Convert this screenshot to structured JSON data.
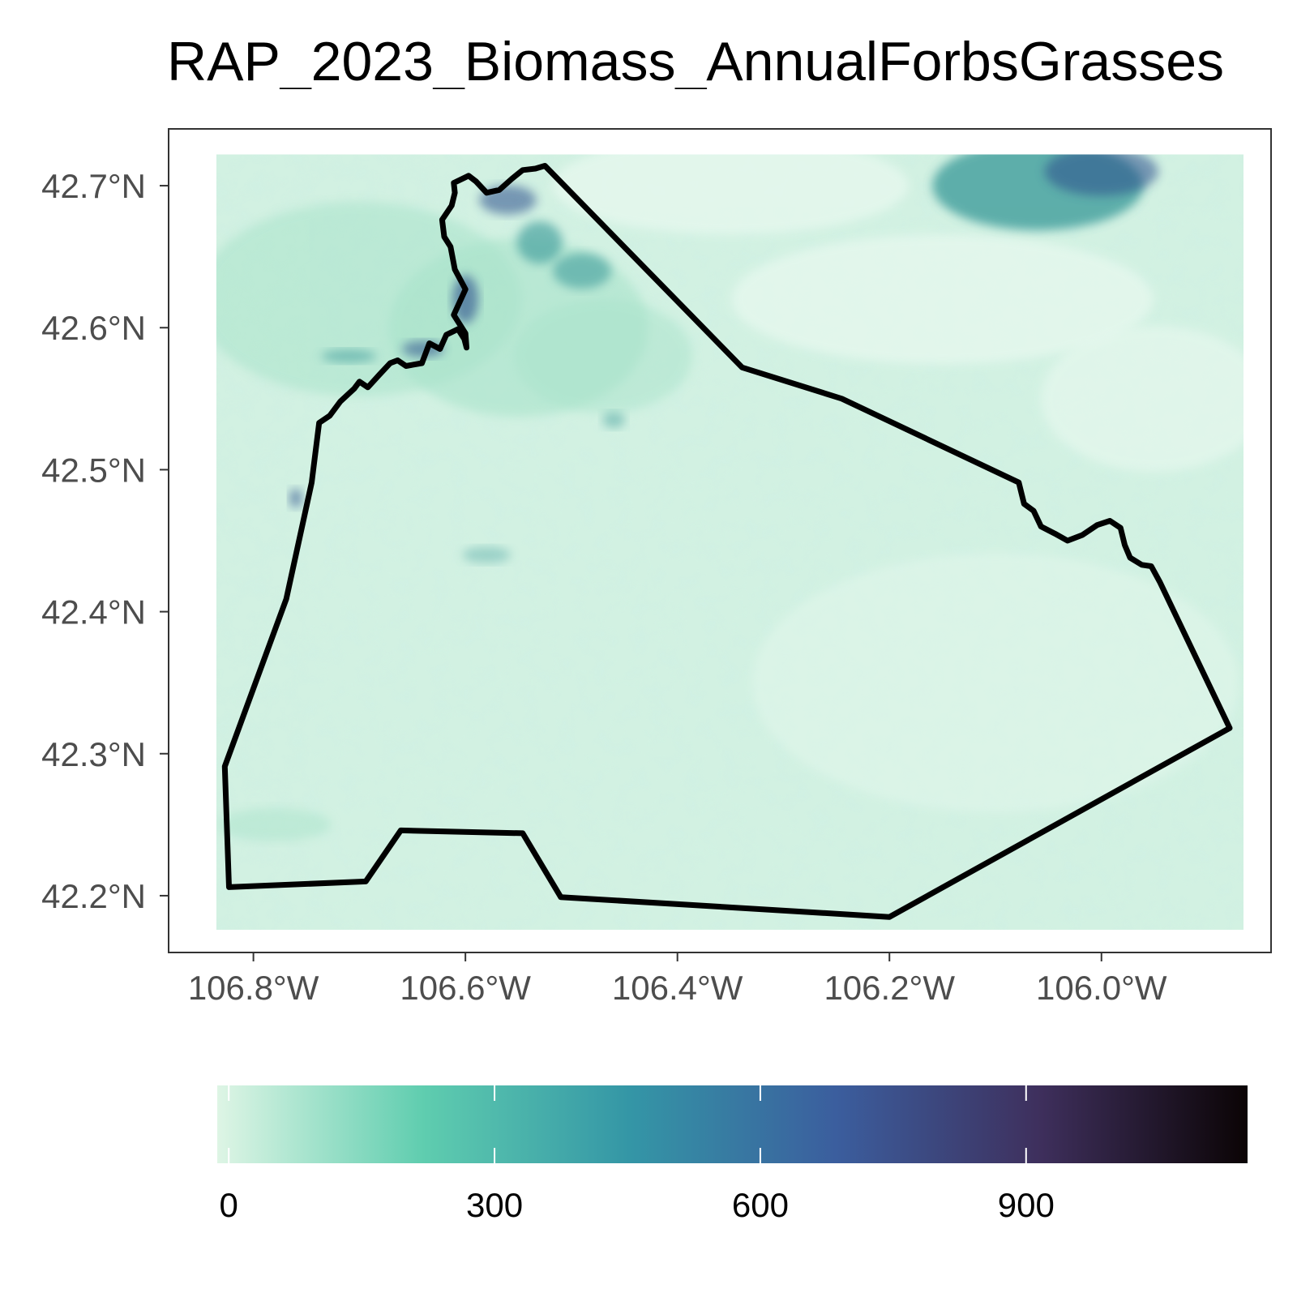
{
  "chart_data": {
    "type": "map",
    "title": "RAP_2023_Biomass_AnnualForbsGrasses",
    "x_axis": {
      "ticks": [
        -106.8,
        -106.6,
        -106.4,
        -106.2,
        -106.0
      ],
      "tick_labels": [
        "106.8°W",
        "106.6°W",
        "106.4°W",
        "106.2°W",
        "106.0°W"
      ],
      "range": [
        -106.88,
        -105.84
      ]
    },
    "y_axis": {
      "ticks": [
        42.2,
        42.3,
        42.4,
        42.5,
        42.6,
        42.7
      ],
      "tick_labels": [
        "42.2°N",
        "42.3°N",
        "42.4°N",
        "42.5°N",
        "42.6°N",
        "42.7°N"
      ],
      "range": [
        42.16,
        42.74
      ]
    },
    "raster_extent": {
      "lon": [
        -106.835,
        -105.866
      ],
      "lat": [
        42.176,
        42.722
      ]
    },
    "boundary": [
      [
        -106.611,
        42.702
      ],
      [
        -106.597,
        42.707
      ],
      [
        -106.59,
        42.703
      ],
      [
        -106.58,
        42.695
      ],
      [
        -106.568,
        42.697
      ],
      [
        -106.556,
        42.705
      ],
      [
        -106.546,
        42.711
      ],
      [
        -106.534,
        42.712
      ],
      [
        -106.525,
        42.714
      ],
      [
        -106.339,
        42.572
      ],
      [
        -106.245,
        42.55
      ],
      [
        -106.078,
        42.491
      ],
      [
        -106.073,
        42.476
      ],
      [
        -106.064,
        42.471
      ],
      [
        -106.057,
        42.46
      ],
      [
        -106.044,
        42.455
      ],
      [
        -106.032,
        42.45
      ],
      [
        -106.018,
        42.454
      ],
      [
        -106.004,
        42.461
      ],
      [
        -105.992,
        42.464
      ],
      [
        -105.982,
        42.459
      ],
      [
        -105.978,
        42.447
      ],
      [
        -105.973,
        42.438
      ],
      [
        -105.962,
        42.433
      ],
      [
        -105.953,
        42.432
      ],
      [
        -105.945,
        42.421
      ],
      [
        -105.879,
        42.318
      ],
      [
        -106.2,
        42.185
      ],
      [
        -106.51,
        42.199
      ],
      [
        -106.546,
        42.244
      ],
      [
        -106.661,
        42.246
      ],
      [
        -106.694,
        42.21
      ],
      [
        -106.823,
        42.206
      ],
      [
        -106.827,
        42.291
      ],
      [
        -106.769,
        42.409
      ],
      [
        -106.745,
        42.491
      ],
      [
        -106.738,
        42.533
      ],
      [
        -106.728,
        42.538
      ],
      [
        -106.718,
        42.548
      ],
      [
        -106.705,
        42.557
      ],
      [
        -106.7,
        42.562
      ],
      [
        -106.692,
        42.558
      ],
      [
        -106.681,
        42.567
      ],
      [
        -106.671,
        42.575
      ],
      [
        -106.664,
        42.577
      ],
      [
        -106.656,
        42.573
      ],
      [
        -106.641,
        42.575
      ],
      [
        -106.634,
        42.589
      ],
      [
        -106.624,
        42.585
      ],
      [
        -106.618,
        42.595
      ],
      [
        -106.607,
        42.599
      ],
      [
        -106.601,
        42.592
      ],
      [
        -106.599,
        42.586
      ],
      [
        -106.6,
        42.596
      ],
      [
        -106.611,
        42.609
      ],
      [
        -106.6,
        42.627
      ],
      [
        -106.61,
        42.641
      ],
      [
        -106.614,
        42.657
      ],
      [
        -106.62,
        42.664
      ],
      [
        -106.622,
        42.676
      ],
      [
        -106.613,
        42.686
      ],
      [
        -106.61,
        42.695
      ]
    ],
    "colorbar": {
      "ticks": [
        0,
        300,
        600,
        900
      ],
      "tick_labels": [
        "0",
        "300",
        "600",
        "900"
      ],
      "min": -13,
      "max": 1150,
      "stops": [
        {
          "value": 0.0,
          "color": "#def5e5"
        },
        {
          "value": 0.2,
          "color": "#5fcdaf"
        },
        {
          "value": 0.4,
          "color": "#3496a6"
        },
        {
          "value": 0.6,
          "color": "#3b5e9e"
        },
        {
          "value": 0.8,
          "color": "#3e2f5c"
        },
        {
          "value": 1.0,
          "color": "#0b0405"
        }
      ]
    },
    "grid": false,
    "legend_position": "bottom",
    "colors": {
      "raster_base": "#d2f1e2",
      "raster_light": "#e6f8ee",
      "raster_mid": "#a9e3cb",
      "raster_dense": "#4aa3a0",
      "raster_peak": "#2c4e8c",
      "boundary": "#000000",
      "panel_border": "#333333"
    }
  }
}
